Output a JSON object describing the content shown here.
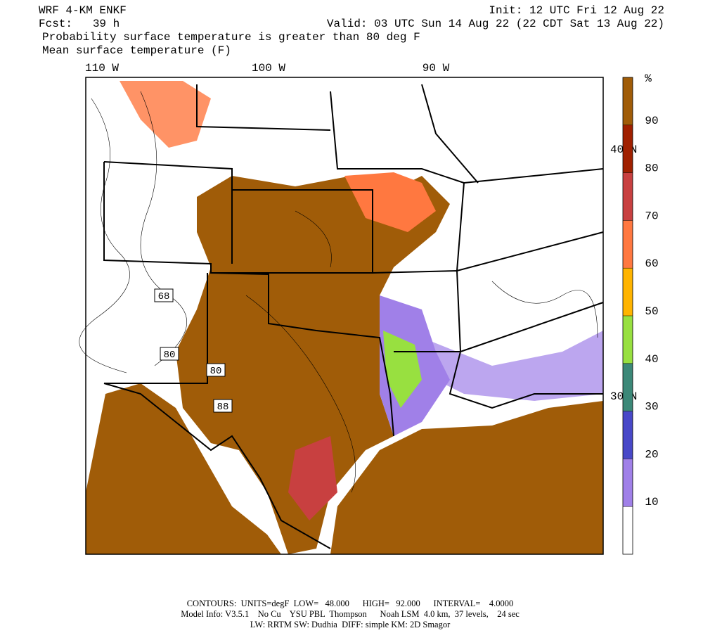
{
  "header": {
    "model": "WRF 4-KM ENKF",
    "forecast": "Fcst:   39 h",
    "init": "Init: 12 UTC Fri 12 Aug 22",
    "valid": "Valid: 03 UTC Sun 14 Aug 22 (22 CDT Sat 13 Aug 22)",
    "field1": "Probability surface temperature is greater than 80 deg F",
    "field2": "Mean surface temperature (F)"
  },
  "map": {
    "lon_labels": [
      "110 W",
      "100 W",
      "90 W"
    ],
    "lat_labels": [
      "40 N",
      "30 N"
    ],
    "contour_labels": [
      "68",
      "80",
      "80",
      "88"
    ]
  },
  "colorbar": {
    "unit": "%",
    "lim": [
      0,
      100
    ],
    "ticks": [
      10,
      20,
      30,
      40,
      50,
      60,
      70,
      80,
      90
    ],
    "colors": [
      "#ffffff",
      "#a080e8",
      "#4848c8",
      "#3c8878",
      "#98e040",
      "#ffb400",
      "#ff7840",
      "#c84040",
      "#a02000",
      "#a05c08"
    ]
  },
  "footer": {
    "line1": "CONTOURS:  UNITS=degF  LOW=   48.000      HIGH=   92.000      INTERVAL=    4.0000",
    "line2": "Model Info: V3.5.1    No Cu    YSU PBL  Thompson      Noah LSM  4.0 km,  37 levels,    24 sec",
    "line3": "LW: RRTM SW: Dudhia  DIFF: simple KM: 2D Smagor"
  }
}
